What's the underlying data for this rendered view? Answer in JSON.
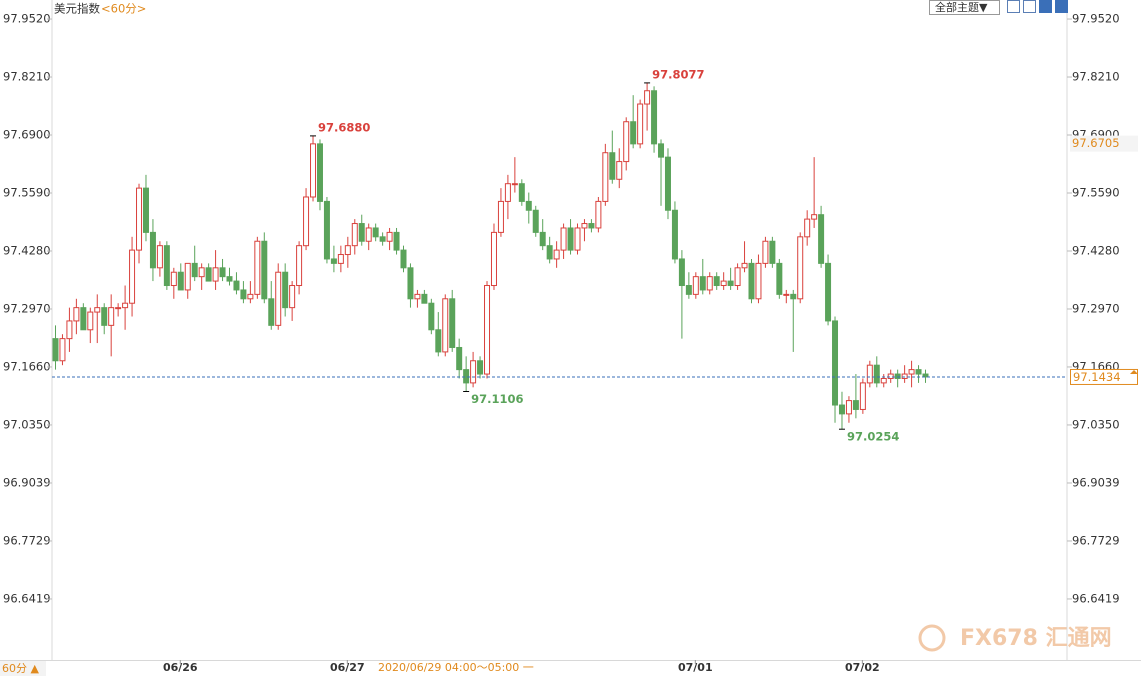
{
  "chart_data": {
    "type": "candlestick",
    "title": "美元指数",
    "period": "<60分>",
    "theme_button": "全部主题▼",
    "period_tab": "60分 ▲",
    "status": "2020/06/29 04:00～05:00 一",
    "watermark": "FX678 汇通网",
    "categories": [
      null,
      null,
      null,
      null,
      null,
      null,
      null,
      null,
      null,
      null,
      null,
      null,
      null,
      null,
      null,
      null,
      null,
      null,
      "06/26",
      null,
      null,
      null,
      null,
      null,
      null,
      null,
      null,
      null,
      null,
      null,
      null,
      null,
      null,
      null,
      null,
      null,
      null,
      null,
      null,
      null,
      null,
      null,
      "06/27",
      null,
      null,
      null,
      null,
      null,
      null,
      null,
      null,
      null,
      null,
      null,
      null,
      null,
      null,
      null,
      null,
      null,
      null,
      null,
      null,
      null,
      null,
      null,
      null,
      null,
      null,
      null,
      null,
      null,
      null,
      null,
      null,
      null,
      null,
      null,
      null,
      null,
      null,
      null,
      null,
      null,
      null,
      null,
      null,
      null,
      null,
      null,
      null,
      null,
      "07/01",
      null,
      null,
      null,
      null,
      null,
      null,
      null,
      null,
      null,
      null,
      null,
      null,
      null,
      null,
      null,
      null,
      null,
      null,
      null,
      null,
      null,
      null,
      null,
      "07/02",
      null,
      null,
      null,
      null,
      null,
      null,
      null,
      null,
      null
    ],
    "open": [
      97.23,
      97.18,
      97.23,
      97.27,
      97.3,
      97.25,
      97.29,
      97.3,
      97.26,
      97.3,
      97.3,
      97.31,
      97.43,
      97.57,
      97.47,
      97.39,
      97.44,
      97.35,
      97.38,
      97.34,
      97.4,
      97.37,
      97.39,
      97.36,
      97.39,
      97.37,
      97.36,
      97.34,
      97.32,
      97.33,
      97.45,
      97.32,
      97.26,
      97.38,
      97.3,
      97.35,
      97.44,
      97.55,
      97.67,
      97.54,
      97.41,
      97.4,
      97.42,
      97.44,
      97.49,
      97.45,
      97.48,
      97.46,
      97.45,
      97.47,
      97.43,
      97.39,
      97.32,
      97.33,
      97.31,
      97.25,
      97.2,
      97.32,
      97.21,
      97.16,
      97.13,
      97.18,
      97.15,
      97.35,
      97.47,
      97.54,
      97.58,
      97.58,
      97.54,
      97.52,
      97.47,
      97.44,
      97.41,
      97.43,
      97.48,
      97.43,
      97.48,
      97.49,
      97.48,
      97.54,
      97.65,
      97.59,
      97.63,
      97.72,
      97.67,
      97.76,
      97.79,
      97.67,
      97.64,
      97.52,
      97.41,
      97.35,
      97.33,
      97.37,
      97.34,
      97.37,
      97.35,
      97.36,
      97.35,
      97.39,
      97.4,
      97.32,
      97.4,
      97.45,
      97.4,
      97.33,
      97.33,
      97.32,
      97.46,
      97.5,
      97.51,
      97.4,
      97.27,
      97.08,
      97.06,
      97.09,
      97.07,
      97.13,
      97.17,
      97.13,
      97.14,
      97.15,
      97.14,
      97.15,
      97.16,
      97.15
    ],
    "high": [
      97.26,
      97.24,
      97.3,
      97.32,
      97.31,
      97.3,
      97.33,
      97.31,
      97.33,
      97.31,
      97.35,
      97.46,
      97.58,
      97.6,
      97.5,
      97.45,
      97.45,
      97.39,
      97.4,
      97.4,
      97.44,
      97.4,
      97.4,
      97.43,
      97.41,
      97.39,
      97.38,
      97.36,
      97.36,
      97.46,
      97.47,
      97.36,
      97.4,
      97.4,
      97.36,
      97.45,
      97.57,
      97.688,
      97.68,
      97.55,
      97.44,
      97.44,
      97.46,
      97.5,
      97.51,
      97.49,
      97.49,
      97.47,
      97.48,
      97.48,
      97.44,
      97.4,
      97.34,
      97.34,
      97.32,
      97.29,
      97.33,
      97.34,
      97.23,
      97.19,
      97.2,
      97.19,
      97.36,
      97.49,
      97.57,
      97.6,
      97.64,
      97.59,
      97.56,
      97.53,
      97.5,
      97.46,
      97.45,
      97.49,
      97.5,
      97.49,
      97.5,
      97.5,
      97.55,
      97.67,
      97.7,
      97.66,
      97.73,
      97.78,
      97.77,
      97.8077,
      97.8,
      97.68,
      97.66,
      97.54,
      97.43,
      97.38,
      97.38,
      97.41,
      97.38,
      97.38,
      97.38,
      97.39,
      97.4,
      97.45,
      97.41,
      97.42,
      97.46,
      97.46,
      97.41,
      97.34,
      97.34,
      97.47,
      97.52,
      97.64,
      97.53,
      97.42,
      97.28,
      97.11,
      97.1,
      97.15,
      97.14,
      97.18,
      97.19,
      97.15,
      97.16,
      97.16,
      97.17,
      97.18,
      97.17,
      97.16
    ],
    "low": [
      97.16,
      97.17,
      97.2,
      97.24,
      97.25,
      97.22,
      97.22,
      97.24,
      97.19,
      97.28,
      97.25,
      97.28,
      97.4,
      97.45,
      97.36,
      97.37,
      97.34,
      97.32,
      97.34,
      97.32,
      97.36,
      97.34,
      97.36,
      97.34,
      97.36,
      97.35,
      97.33,
      97.31,
      97.31,
      97.32,
      97.31,
      97.25,
      97.25,
      97.28,
      97.27,
      97.33,
      97.43,
      97.54,
      97.52,
      97.4,
      97.38,
      97.38,
      97.39,
      97.42,
      97.44,
      97.43,
      97.45,
      97.44,
      97.43,
      97.42,
      97.38,
      97.3,
      97.3,
      97.31,
      97.24,
      97.19,
      97.19,
      97.2,
      97.14,
      97.1106,
      97.12,
      97.14,
      97.14,
      97.34,
      97.46,
      97.5,
      97.56,
      97.53,
      97.49,
      97.46,
      97.43,
      97.4,
      97.39,
      97.41,
      97.42,
      97.42,
      97.45,
      97.47,
      97.47,
      97.53,
      97.58,
      97.57,
      97.61,
      97.66,
      97.66,
      97.7,
      97.65,
      97.53,
      97.5,
      97.4,
      97.23,
      97.32,
      97.32,
      97.33,
      97.33,
      97.34,
      97.34,
      97.34,
      97.34,
      97.38,
      97.31,
      97.31,
      97.39,
      97.39,
      97.32,
      97.31,
      97.2,
      97.31,
      97.44,
      97.48,
      97.39,
      97.26,
      97.04,
      97.0254,
      97.04,
      97.05,
      97.06,
      97.12,
      97.12,
      97.12,
      97.13,
      97.12,
      97.13,
      97.12,
      97.13,
      97.13
    ],
    "close": [
      97.18,
      97.23,
      97.27,
      97.3,
      97.25,
      97.29,
      97.3,
      97.26,
      97.3,
      97.3,
      97.31,
      97.43,
      97.57,
      97.47,
      97.39,
      97.44,
      97.35,
      97.38,
      97.34,
      97.4,
      97.37,
      97.39,
      97.36,
      97.39,
      97.37,
      97.36,
      97.34,
      97.32,
      97.33,
      97.45,
      97.32,
      97.26,
      97.38,
      97.3,
      97.35,
      97.44,
      97.55,
      97.67,
      97.54,
      97.41,
      97.4,
      97.42,
      97.44,
      97.49,
      97.45,
      97.48,
      97.46,
      97.45,
      97.47,
      97.43,
      97.39,
      97.32,
      97.33,
      97.31,
      97.25,
      97.2,
      97.32,
      97.21,
      97.16,
      97.13,
      97.18,
      97.15,
      97.35,
      97.47,
      97.54,
      97.58,
      97.58,
      97.54,
      97.52,
      97.47,
      97.44,
      97.41,
      97.43,
      97.48,
      97.43,
      97.48,
      97.49,
      97.48,
      97.54,
      97.65,
      97.59,
      97.63,
      97.72,
      97.67,
      97.76,
      97.79,
      97.67,
      97.64,
      97.52,
      97.41,
      97.35,
      97.33,
      97.37,
      97.34,
      97.37,
      97.35,
      97.36,
      97.35,
      97.39,
      97.4,
      97.32,
      97.4,
      97.45,
      97.4,
      97.33,
      97.33,
      97.32,
      97.46,
      97.5,
      97.51,
      97.4,
      97.27,
      97.08,
      97.06,
      97.09,
      97.07,
      97.13,
      97.17,
      97.13,
      97.14,
      97.15,
      97.14,
      97.15,
      97.16,
      97.15,
      97.1434
    ],
    "up_color": "#d9413c",
    "down_color": "#5aa35a",
    "ylim": [
      96.504,
      97.995
    ],
    "yticks": [
      {
        "value": 97.952,
        "label": "97.9520"
      },
      {
        "value": 97.821,
        "label": "97.8210"
      },
      {
        "value": 97.69,
        "label": "97.6900"
      },
      {
        "value": 97.559,
        "label": "97.5590"
      },
      {
        "value": 97.428,
        "label": "97.4280"
      },
      {
        "value": 97.297,
        "label": "97.2970"
      },
      {
        "value": 97.166,
        "label": "97.1660"
      },
      {
        "value": 97.035,
        "label": "97.0350"
      },
      {
        "value": 96.9039,
        "label": "96.9039"
      },
      {
        "value": 96.7729,
        "label": "96.7729"
      },
      {
        "value": 96.6419,
        "label": "96.6419"
      }
    ],
    "annotations": [
      {
        "value": 97.688,
        "label": "97.6880"
      },
      {
        "value": 97.8077,
        "label": "97.8077"
      },
      {
        "value": 97.1106,
        "label": "97.1106"
      },
      {
        "value": 97.0254,
        "label": "97.0254"
      }
    ],
    "last_price": {
      "value": 97.1434,
      "label": "97.1434"
    },
    "cursor_price": {
      "value": 97.6705,
      "label": "97.6705"
    },
    "grid": false
  }
}
